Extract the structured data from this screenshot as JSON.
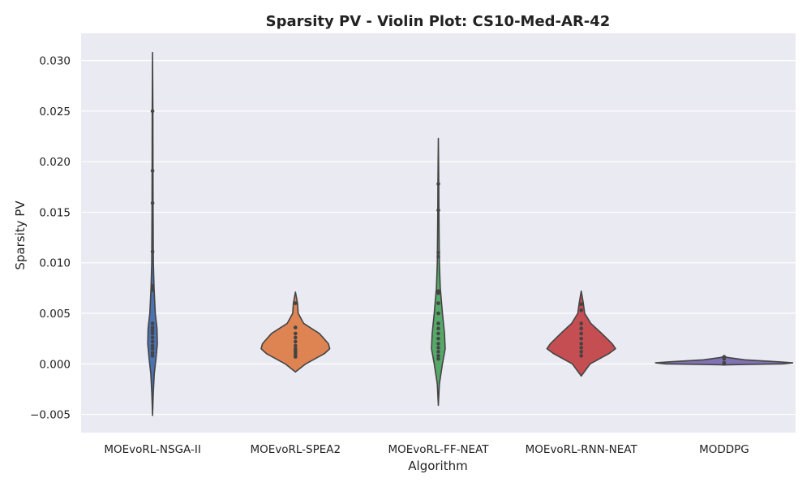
{
  "chart_data": {
    "type": "violin",
    "title": "Sparsity PV - Violin Plot: CS10-Med-AR-42",
    "xlabel": "Algorithm",
    "ylabel": "Sparsity PV",
    "ylim": [
      -0.0068,
      0.0327
    ],
    "yticks": [
      -0.005,
      0.0,
      0.005,
      0.01,
      0.015,
      0.02,
      0.025,
      0.03
    ],
    "ytick_labels": [
      "−0.005",
      "0.000",
      "0.005",
      "0.010",
      "0.015",
      "0.020",
      "0.025",
      "0.030"
    ],
    "grid": true,
    "background": "#eaeaf2",
    "grid_color": "#ffffff",
    "outline_color": "#444444",
    "categories": [
      "MOEvoRL-NSGA-II",
      "MOEvoRL-SPEA2",
      "MOEvoRL-FF-NEAT",
      "MOEvoRL-RNN-NEAT",
      "MODDPG"
    ],
    "series": [
      {
        "category": "MOEvoRL-NSGA-II",
        "color": "#4c72b0",
        "profile": [
          [
            -0.0051,
            0.0
          ],
          [
            -0.003,
            0.01
          ],
          [
            -0.001,
            0.025
          ],
          [
            0.0005,
            0.05
          ],
          [
            0.002,
            0.07
          ],
          [
            0.0035,
            0.065
          ],
          [
            0.005,
            0.04
          ],
          [
            0.0075,
            0.022
          ],
          [
            0.01,
            0.012
          ],
          [
            0.015,
            0.008
          ],
          [
            0.02,
            0.006
          ],
          [
            0.025,
            0.005
          ],
          [
            0.0308,
            0.0
          ]
        ],
        "points": [
          0.025,
          0.0191,
          0.0159,
          0.0111,
          0.0077,
          0.0075,
          0.0073,
          0.004,
          0.0036,
          0.0033,
          0.003,
          0.0026,
          0.0022,
          0.0018,
          0.0015,
          0.0011,
          0.0008
        ]
      },
      {
        "category": "MOEvoRL-SPEA2",
        "color": "#dd8452",
        "profile": [
          [
            -0.0008,
            0.0
          ],
          [
            0.0,
            0.15
          ],
          [
            0.001,
            0.42
          ],
          [
            0.0015,
            0.5
          ],
          [
            0.002,
            0.48
          ],
          [
            0.003,
            0.35
          ],
          [
            0.004,
            0.12
          ],
          [
            0.005,
            0.04
          ],
          [
            0.006,
            0.03
          ],
          [
            0.0071,
            0.0
          ]
        ],
        "points": [
          0.006,
          0.0036,
          0.003,
          0.0026,
          0.0022,
          0.0018,
          0.0015,
          0.0013,
          0.0011,
          0.0009,
          0.0007
        ]
      },
      {
        "category": "MOEvoRL-FF-NEAT",
        "color": "#55a868",
        "profile": [
          [
            -0.0041,
            0.0
          ],
          [
            -0.002,
            0.015
          ],
          [
            0.0,
            0.06
          ],
          [
            0.0015,
            0.1
          ],
          [
            0.003,
            0.09
          ],
          [
            0.005,
            0.06
          ],
          [
            0.0075,
            0.028
          ],
          [
            0.01,
            0.015
          ],
          [
            0.015,
            0.008
          ],
          [
            0.018,
            0.006
          ],
          [
            0.0223,
            0.0
          ]
        ],
        "points": [
          0.0178,
          0.0152,
          0.011,
          0.0106,
          0.0072,
          0.007,
          0.006,
          0.005,
          0.004,
          0.0035,
          0.003,
          0.0025,
          0.002,
          0.0016,
          0.0012,
          0.0008,
          0.0005
        ]
      },
      {
        "category": "MOEvoRL-RNN-NEAT",
        "color": "#c44e52",
        "profile": [
          [
            -0.0012,
            0.0
          ],
          [
            0.0,
            0.13
          ],
          [
            0.001,
            0.4
          ],
          [
            0.0015,
            0.5
          ],
          [
            0.002,
            0.45
          ],
          [
            0.003,
            0.3
          ],
          [
            0.004,
            0.14
          ],
          [
            0.005,
            0.05
          ],
          [
            0.006,
            0.03
          ],
          [
            0.0072,
            0.0
          ]
        ],
        "points": [
          0.0059,
          0.0053,
          0.004,
          0.0035,
          0.003,
          0.0025,
          0.002,
          0.0016,
          0.0012,
          0.0008
        ]
      },
      {
        "category": "MODDPG",
        "color": "#8172b3",
        "profile": [
          [
            -0.0001,
            0.0
          ],
          [
            -5e-05,
            0.35
          ],
          [
            0.0,
            0.85
          ],
          [
            0.0001,
            1.0
          ],
          [
            0.0002,
            0.8
          ],
          [
            0.0004,
            0.3
          ],
          [
            0.0006,
            0.08
          ],
          [
            0.0007,
            0.0
          ]
        ],
        "points": [
          0.0007,
          0.0006,
          0.0005,
          0.0001,
          0.0
        ]
      }
    ]
  }
}
